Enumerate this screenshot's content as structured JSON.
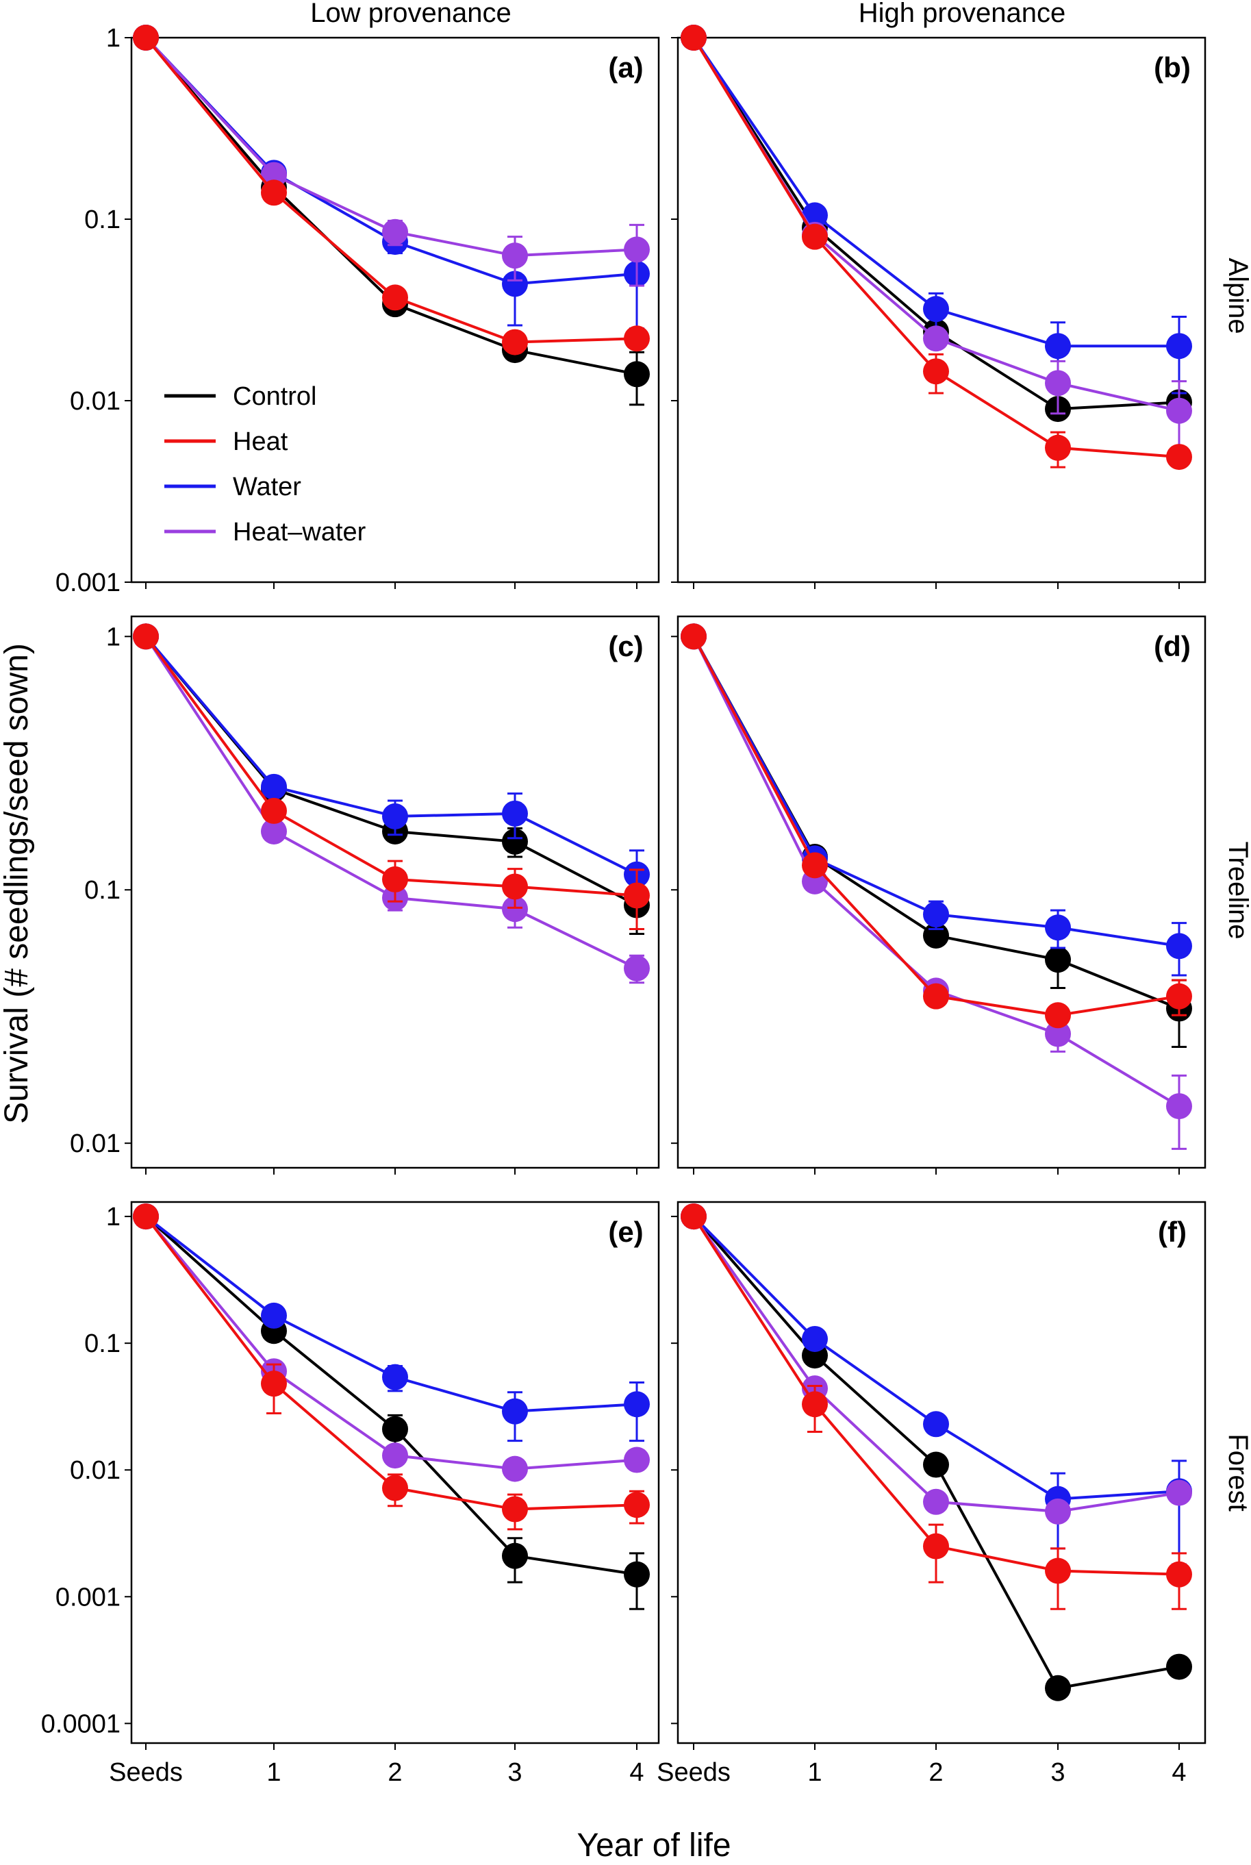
{
  "figure": {
    "col_headers": [
      "Low provenance",
      "High provenance"
    ],
    "row_headers": [
      "Alpine",
      "Treeline",
      "Forest"
    ],
    "ylabel": "Survival (# seedlings/seed sown)",
    "xlabel": "Year of life",
    "x_categories": [
      "Seeds",
      "1",
      "2",
      "3",
      "4"
    ],
    "legend": [
      {
        "name": "Control",
        "color": "#000000"
      },
      {
        "name": "Heat",
        "color": "#ee1111"
      },
      {
        "name": "Water",
        "color": "#1a1aee"
      },
      {
        "name": "Heat–water",
        "color": "#9a3fe0"
      }
    ]
  },
  "chart_data": [
    {
      "type": "line",
      "panel": "(a)",
      "yscale": "log",
      "ylim": [
        0.001,
        1
      ],
      "yticks": [
        1,
        0.1,
        0.01,
        0.001
      ],
      "ytick_labels": [
        "1",
        "0.1",
        "0.01",
        "0.001"
      ],
      "series": [
        {
          "name": "Control",
          "values": [
            1,
            0.15,
            0.034,
            0.019,
            0.014
          ],
          "err": [
            0,
            0,
            0,
            0.002,
            0.0045
          ]
        },
        {
          "name": "Water",
          "values": [
            1,
            0.18,
            0.075,
            0.044,
            0.05
          ],
          "err": [
            0,
            0,
            0.01,
            0.018,
            0.025
          ]
        },
        {
          "name": "Heat–water",
          "values": [
            1,
            0.175,
            0.085,
            0.063,
            0.068
          ],
          "err": [
            0,
            0,
            0.013,
            0.017,
            0.025
          ]
        },
        {
          "name": "Heat",
          "values": [
            1,
            0.14,
            0.037,
            0.021,
            0.022
          ],
          "err": [
            0,
            0,
            0,
            0,
            0
          ]
        }
      ]
    },
    {
      "type": "line",
      "panel": "(b)",
      "yscale": "log",
      "ylim": [
        0.001,
        1
      ],
      "yticks": [
        1,
        0.1,
        0.01,
        0.001
      ],
      "ytick_labels": [
        "",
        "",
        "",
        ""
      ],
      "series": [
        {
          "name": "Control",
          "values": [
            1,
            0.09,
            0.024,
            0.009,
            0.0098
          ],
          "err": [
            0,
            0,
            0,
            0,
            0
          ]
        },
        {
          "name": "Water",
          "values": [
            1,
            0.105,
            0.032,
            0.02,
            0.02
          ],
          "err": [
            0,
            0,
            0.007,
            0.007,
            0.009
          ]
        },
        {
          "name": "Heat–water",
          "values": [
            1,
            0.082,
            0.022,
            0.0125,
            0.0088
          ],
          "err": [
            0,
            0,
            0,
            0.004,
            0.004
          ]
        },
        {
          "name": "Heat",
          "values": [
            1,
            0.08,
            0.0145,
            0.0055,
            0.0049
          ],
          "err": [
            0,
            0,
            0.0035,
            0.0012,
            0
          ]
        }
      ]
    },
    {
      "type": "line",
      "panel": "(c)",
      "yscale": "log",
      "ylim": [
        0.008,
        1.2
      ],
      "yticks": [
        1,
        0.1,
        0.01
      ],
      "ytick_labels": [
        "1",
        "0.1",
        "0.01"
      ],
      "series": [
        {
          "name": "Control",
          "values": [
            1,
            0.25,
            0.17,
            0.155,
            0.087
          ],
          "err": [
            0,
            0,
            0,
            0.02,
            0.02
          ]
        },
        {
          "name": "Water",
          "values": [
            1,
            0.255,
            0.195,
            0.2,
            0.115
          ],
          "err": [
            0,
            0,
            0.03,
            0.04,
            0.028
          ]
        },
        {
          "name": "Heat–water",
          "values": [
            1,
            0.17,
            0.093,
            0.084,
            0.049
          ],
          "err": [
            0,
            0,
            0.01,
            0.013,
            0.006
          ]
        },
        {
          "name": "Heat",
          "values": [
            1,
            0.205,
            0.11,
            0.103,
            0.095
          ],
          "err": [
            0,
            0,
            0.02,
            0.018,
            0.025
          ]
        }
      ]
    },
    {
      "type": "line",
      "panel": "(d)",
      "yscale": "log",
      "ylim": [
        0.008,
        1.2
      ],
      "yticks": [
        1,
        0.1,
        0.01
      ],
      "ytick_labels": [
        "",
        "",
        ""
      ],
      "series": [
        {
          "name": "Control",
          "values": [
            1,
            0.135,
            0.066,
            0.053,
            0.034
          ],
          "err": [
            0,
            0,
            0,
            0.012,
            0.01
          ]
        },
        {
          "name": "Water",
          "values": [
            1,
            0.133,
            0.08,
            0.071,
            0.06
          ],
          "err": [
            0,
            0,
            0.01,
            0.012,
            0.014
          ]
        },
        {
          "name": "Heat–water",
          "values": [
            1,
            0.108,
            0.04,
            0.027,
            0.014
          ],
          "err": [
            0,
            0,
            0,
            0.004,
            0.0045
          ]
        },
        {
          "name": "Heat",
          "values": [
            1,
            0.125,
            0.038,
            0.032,
            0.038
          ],
          "err": [
            0,
            0,
            0,
            0,
            0.006
          ]
        }
      ]
    },
    {
      "type": "line",
      "panel": "(e)",
      "yscale": "log",
      "ylim": [
        7e-05,
        1.3
      ],
      "yticks": [
        1,
        0.1,
        0.01,
        0.001,
        0.0001
      ],
      "ytick_labels": [
        "1",
        "0.1",
        "0.01",
        "0.001",
        "0.0001"
      ],
      "series": [
        {
          "name": "Control",
          "values": [
            1,
            0.125,
            0.021,
            0.0021,
            0.0015
          ],
          "err": [
            0,
            0,
            0.006,
            0.0008,
            0.0007
          ]
        },
        {
          "name": "Water",
          "values": [
            1,
            0.165,
            0.054,
            0.029,
            0.033
          ],
          "err": [
            0,
            0,
            0.012,
            0.012,
            0.016
          ]
        },
        {
          "name": "Heat–water",
          "values": [
            1,
            0.06,
            0.013,
            0.0102,
            0.012
          ],
          "err": [
            0,
            0,
            0,
            0,
            0
          ]
        },
        {
          "name": "Heat",
          "values": [
            1,
            0.048,
            0.0072,
            0.0049,
            0.0053
          ],
          "err": [
            0,
            0.02,
            0.002,
            0.0015,
            0.0015
          ]
        }
      ]
    },
    {
      "type": "line",
      "panel": "(f)",
      "yscale": "log",
      "ylim": [
        7e-05,
        1.3
      ],
      "yticks": [
        1,
        0.1,
        0.01,
        0.001,
        0.0001
      ],
      "ytick_labels": [
        "",
        "",
        "",
        "",
        ""
      ],
      "series": [
        {
          "name": "Control",
          "values": [
            1,
            0.08,
            0.011,
            0.00019,
            0.00028
          ],
          "err": [
            0,
            0,
            0,
            0,
            0
          ]
        },
        {
          "name": "Water",
          "values": [
            1,
            0.108,
            0.023,
            0.0059,
            0.0068
          ],
          "err": [
            0,
            0,
            0,
            0.0035,
            0.005
          ]
        },
        {
          "name": "Heat–water",
          "values": [
            1,
            0.044,
            0.0056,
            0.0047,
            0.0066
          ],
          "err": [
            0,
            0,
            0,
            0,
            0
          ]
        },
        {
          "name": "Heat",
          "values": [
            1,
            0.033,
            0.0025,
            0.0016,
            0.0015
          ],
          "err": [
            0,
            0.013,
            0.0012,
            0.0008,
            0.0007
          ]
        }
      ]
    }
  ]
}
